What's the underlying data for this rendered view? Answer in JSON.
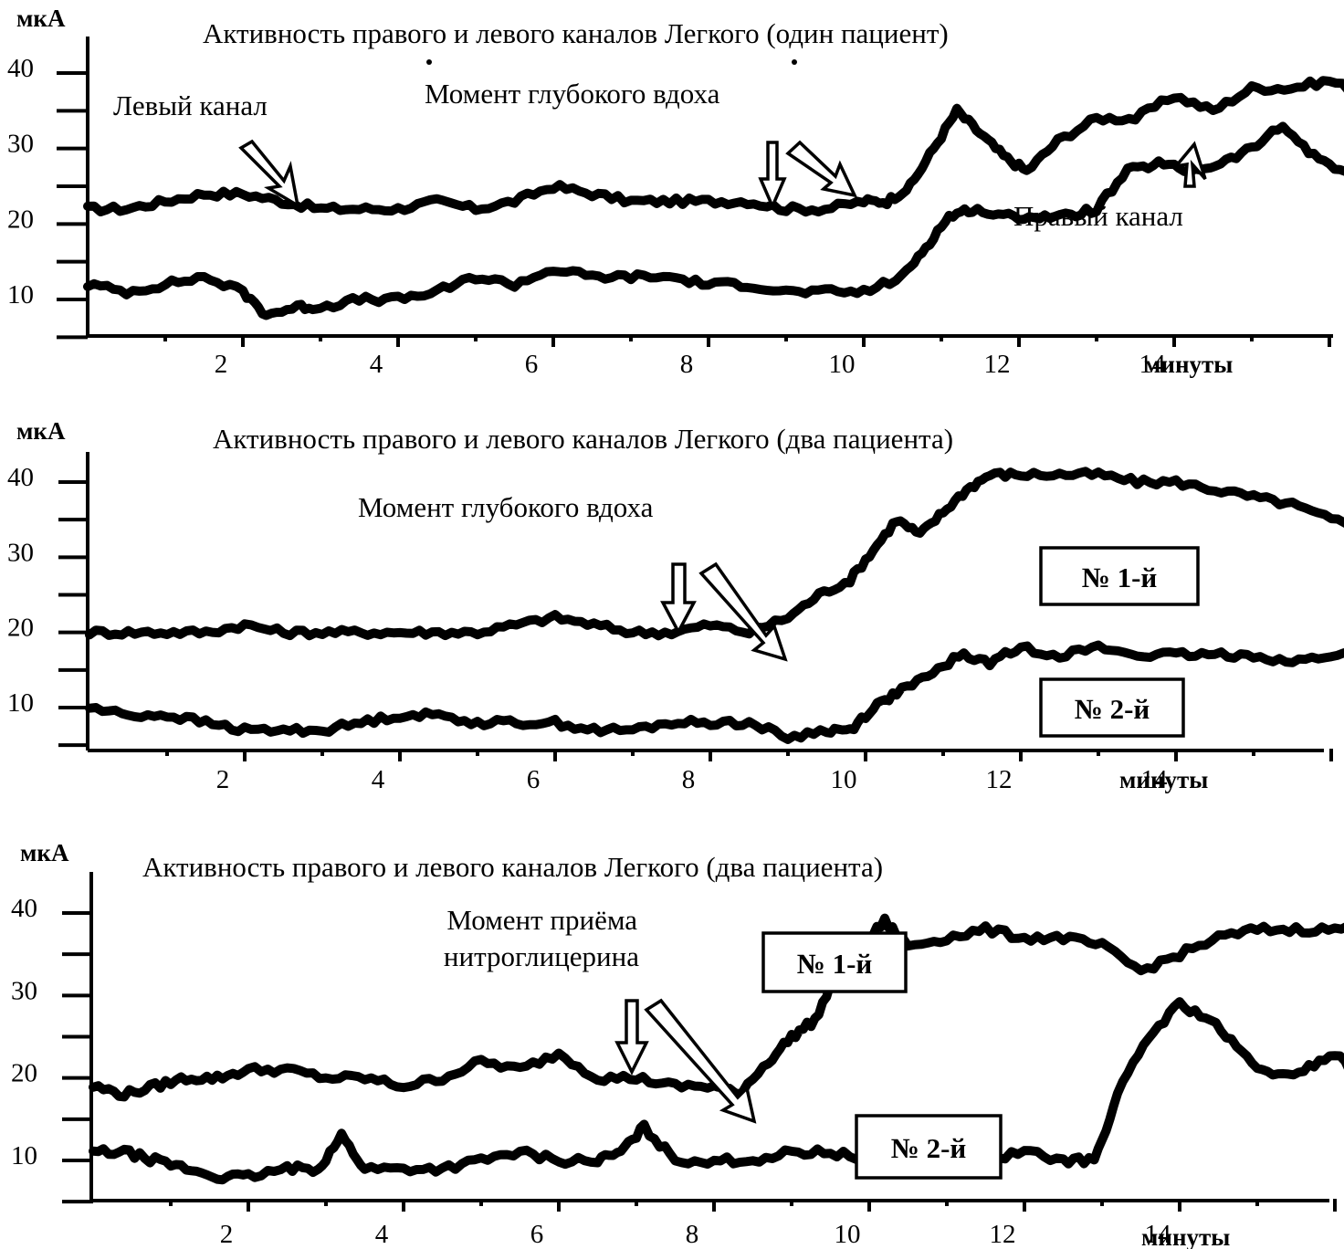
{
  "chart_data": [
    {
      "type": "line",
      "title": "Активность правого и левого каналов Легкого (один пациент)",
      "ylabel": "мкА",
      "xlabel": "минуты",
      "y_ticks": [
        "40",
        "30",
        "20",
        "10"
      ],
      "x_ticks": [
        "2",
        "4",
        "6",
        "8",
        "10",
        "12",
        "14"
      ],
      "ylim": [
        0,
        40
      ],
      "xlim": [
        0,
        18.5
      ],
      "grid": false,
      "annotations": [
        "Левый канал",
        "Момент глубокого вдоха",
        "Правый канал"
      ],
      "series": [
        {
          "name": "Левый канал",
          "x": [
            0,
            0.5,
            1,
            1.5,
            2,
            2.5,
            3,
            3.5,
            4,
            4.5,
            5,
            5.5,
            6,
            6.5,
            7,
            7.5,
            8,
            8.5,
            9,
            9.5,
            10,
            10.3,
            10.6,
            10.9,
            11.2,
            11.5,
            11.8,
            12.1,
            12.5,
            13,
            13.5,
            14,
            14.5,
            15,
            15.5,
            16,
            16.5,
            17,
            17.5
          ],
          "values": [
            22,
            22,
            23,
            24,
            24,
            23,
            22,
            22,
            22,
            23,
            22,
            23,
            25,
            24,
            23,
            23,
            23,
            23,
            22,
            22,
            23,
            23,
            25,
            30,
            35,
            32,
            29,
            27,
            31,
            34,
            34,
            37,
            35,
            38,
            38,
            39,
            37,
            39,
            40
          ]
        },
        {
          "name": "Правый канал",
          "x": [
            0,
            0.5,
            1,
            1.5,
            2,
            2.3,
            2.7,
            3,
            3.5,
            4,
            4.5,
            5,
            5.5,
            6,
            6.5,
            7,
            7.5,
            8,
            8.5,
            9,
            9.5,
            10,
            10.5,
            10.8,
            11.1,
            11.4,
            11.8,
            12.2,
            12.6,
            13,
            13.4,
            13.8,
            14.2,
            14.6,
            15,
            15.4,
            15.8,
            16.2,
            16.6,
            17,
            17.5
          ],
          "values": [
            12,
            11,
            12,
            13,
            11,
            8,
            9,
            9,
            10,
            10,
            11,
            13,
            12,
            14,
            13,
            13,
            13,
            12,
            12,
            11,
            11,
            11,
            13,
            17,
            21,
            22,
            21,
            21,
            21,
            22,
            27,
            28,
            27,
            28,
            30,
            33,
            29,
            27,
            27,
            28,
            29
          ]
        }
      ]
    },
    {
      "type": "line",
      "title": "Активность правого и левого каналов Легкого (два пациента)",
      "ylabel": "мкА",
      "xlabel": "минуты",
      "y_ticks": [
        "40",
        "30",
        "20",
        "10"
      ],
      "x_ticks": [
        "2",
        "4",
        "6",
        "8",
        "10",
        "12",
        "14"
      ],
      "ylim": [
        0,
        40
      ],
      "xlim": [
        0,
        18.5
      ],
      "grid": false,
      "annotations": [
        "Момент глубокого вдоха",
        "№ 1-й",
        "№ 2-й"
      ],
      "series": [
        {
          "name": "№ 1-й",
          "x": [
            0,
            0.5,
            1,
            1.5,
            2,
            2.5,
            3,
            3.5,
            4,
            4.5,
            5,
            5.5,
            6,
            6.5,
            7,
            7.5,
            8,
            8.5,
            9,
            9.4,
            9.8,
            10.1,
            10.4,
            10.7,
            11,
            11.3,
            11.6,
            12,
            12.5,
            13,
            13.5,
            14,
            14.5,
            15,
            15.5,
            16,
            16.5,
            17
          ],
          "values": [
            20,
            20,
            20,
            20,
            21,
            20,
            20,
            20,
            20,
            20,
            20,
            21,
            22,
            21,
            20,
            20,
            21,
            20,
            22,
            25,
            27,
            31,
            35,
            33,
            36,
            39,
            41,
            41,
            41,
            41,
            40,
            40,
            39,
            38,
            37,
            35,
            34,
            34
          ]
        },
        {
          "name": "№ 2-й",
          "x": [
            0,
            0.5,
            1,
            1.5,
            2,
            2.5,
            3,
            3.5,
            4,
            4.5,
            5,
            5.5,
            6,
            6.5,
            7,
            7.5,
            8,
            8.5,
            9,
            9.5,
            9.8,
            10.1,
            10.4,
            10.8,
            11.2,
            11.6,
            12,
            12.5,
            13,
            13.5,
            14,
            14.5,
            15,
            15.5,
            16,
            16.5,
            17
          ],
          "values": [
            10,
            9,
            9,
            8,
            7,
            7,
            7,
            8,
            9,
            9,
            8,
            8,
            8,
            7,
            7,
            8,
            8,
            8,
            6,
            7,
            7,
            10,
            12,
            14,
            17,
            16,
            18,
            17,
            18,
            17,
            17,
            17,
            17,
            16,
            17,
            17,
            15
          ]
        }
      ]
    },
    {
      "type": "line",
      "title": "Активность правого и левого каналов Легкого (два пациента)",
      "ylabel": "мкА",
      "xlabel": "минуты",
      "y_ticks": [
        "40",
        "30",
        "20",
        "10"
      ],
      "x_ticks": [
        "2",
        "4",
        "6",
        "8",
        "10",
        "12",
        "14"
      ],
      "ylim": [
        0,
        40
      ],
      "xlim": [
        0,
        18.5
      ],
      "grid": false,
      "annotations": [
        "Момент приёма",
        "нитроглицерина",
        "№ 1-й",
        "№ 2-й"
      ],
      "series": [
        {
          "name": "№ 1-й",
          "x": [
            0,
            0.4,
            0.8,
            1.2,
            1.6,
            2,
            2.5,
            3,
            3.5,
            4,
            4.5,
            5,
            5.5,
            6,
            6.5,
            7,
            7.5,
            8,
            8.3,
            8.7,
            9,
            9.3,
            9.6,
            9.9,
            10.2,
            10.5,
            11,
            11.5,
            12,
            12.5,
            13,
            13.5,
            14,
            14.5,
            15,
            15.5,
            16,
            16.5,
            17
          ],
          "values": [
            19,
            18,
            19,
            20,
            20,
            21,
            21,
            20,
            20,
            19,
            20,
            22,
            21,
            23,
            20,
            20,
            19,
            19,
            18,
            22,
            25,
            27,
            33,
            36,
            39,
            36,
            37,
            38,
            37,
            37,
            36,
            33,
            35,
            37,
            38,
            38,
            38,
            39,
            38
          ]
        },
        {
          "name": "№ 2-й",
          "x": [
            0,
            0.4,
            0.8,
            1.2,
            1.6,
            2,
            2.5,
            2.9,
            3.2,
            3.5,
            4,
            4.5,
            5,
            5.5,
            6,
            6.5,
            6.8,
            7.1,
            7.5,
            8,
            8.5,
            9,
            9.5,
            10,
            10.5,
            11,
            11.5,
            12,
            12.5,
            12.9,
            13.2,
            13.6,
            14,
            14.4,
            14.8,
            15.2,
            15.6,
            16,
            16.4,
            16.8,
            17
          ],
          "values": [
            11,
            11,
            10,
            9,
            8,
            8,
            9,
            9,
            13,
            9,
            9,
            9,
            10,
            11,
            10,
            10,
            11,
            14,
            10,
            10,
            10,
            11,
            11,
            10,
            9,
            10,
            10,
            11,
            10,
            10,
            18,
            25,
            29,
            27,
            23,
            20,
            21,
            23,
            19,
            17,
            15
          ]
        }
      ]
    }
  ]
}
